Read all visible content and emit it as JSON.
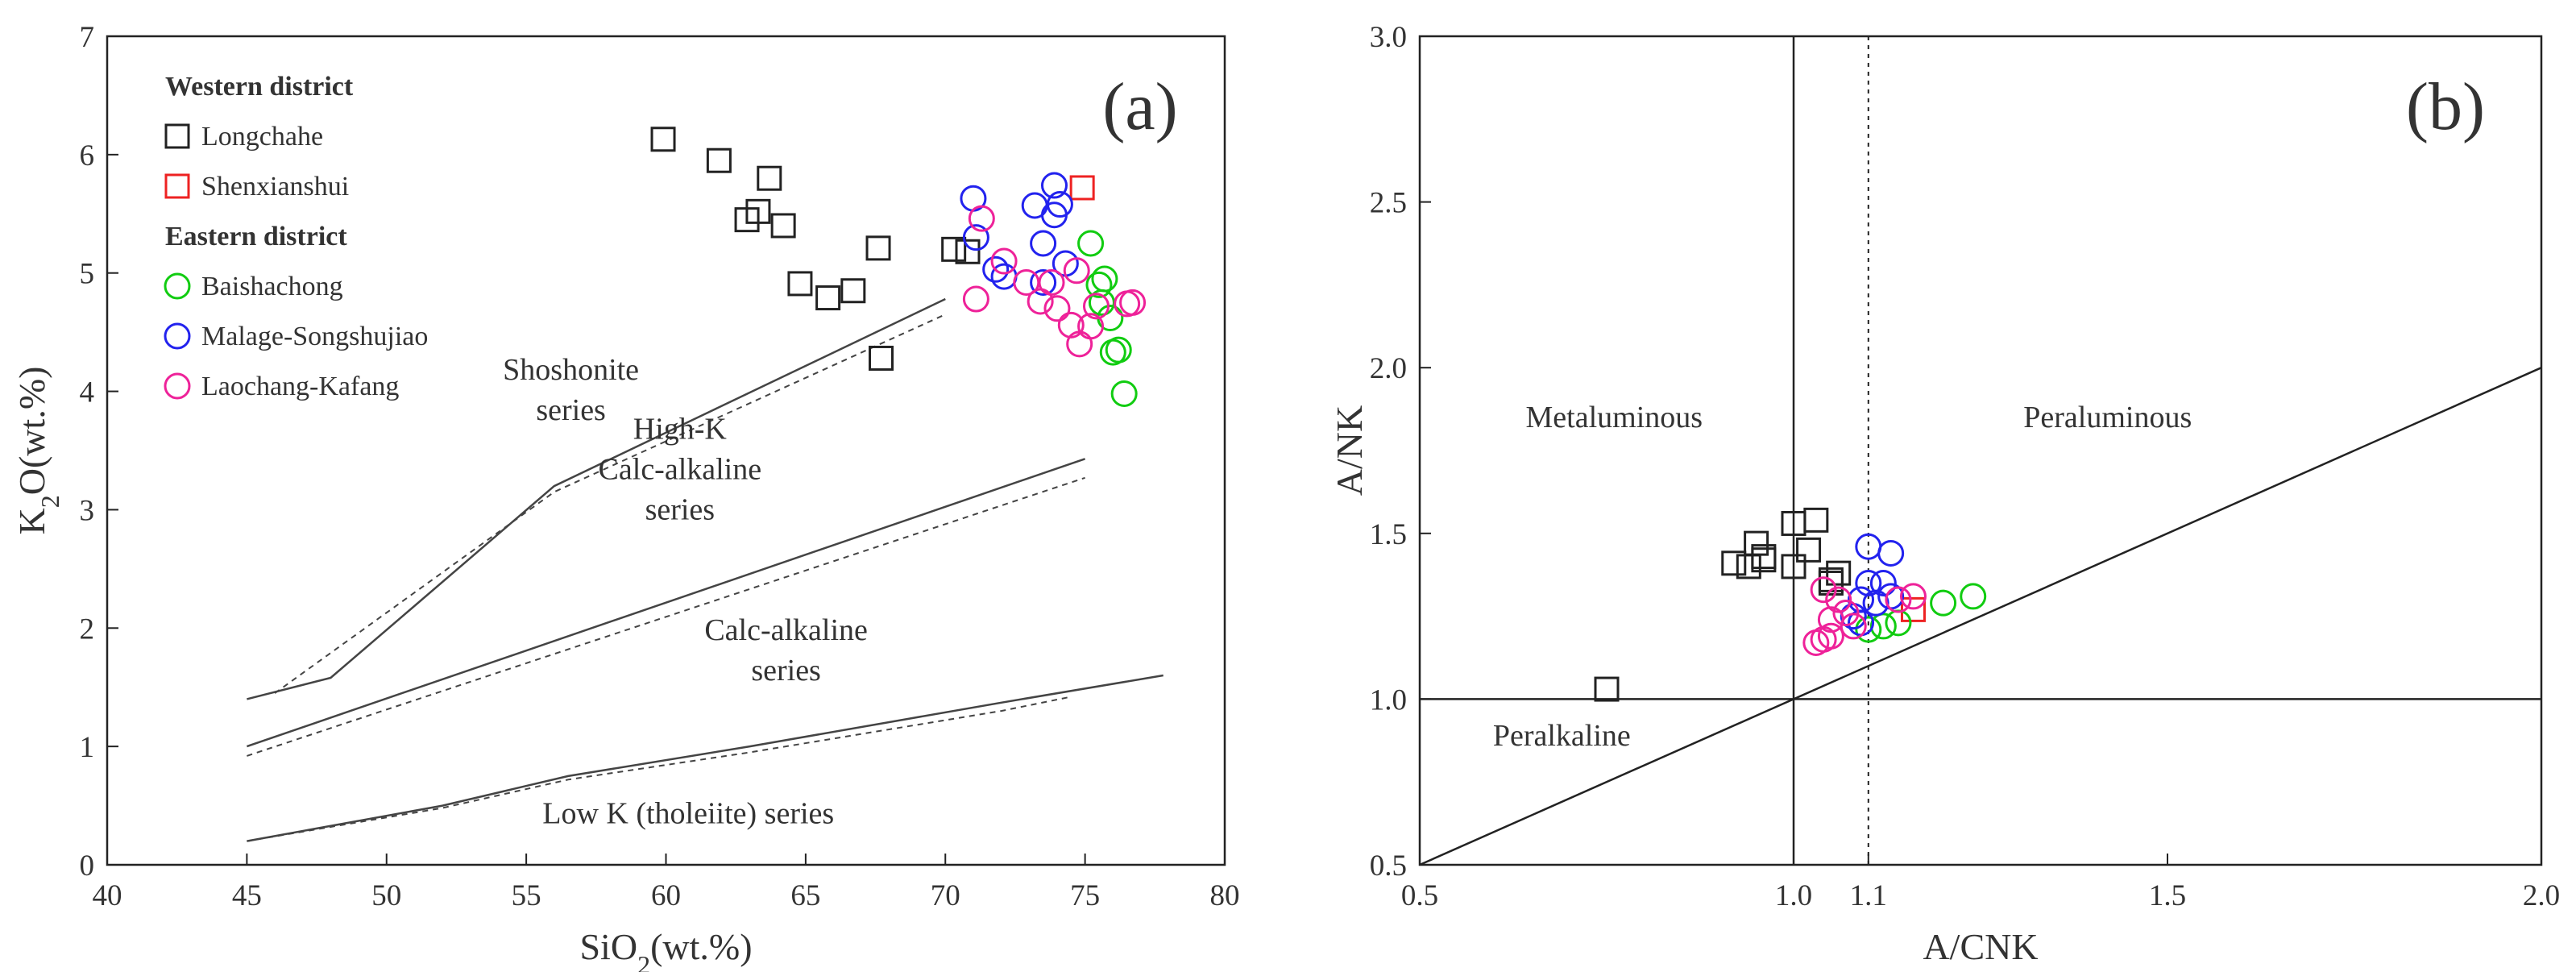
{
  "chart_data": [
    {
      "type": "scatter",
      "panel_label": "(a)",
      "xlabel": {
        "base": "SiO",
        "sub": "2",
        "rest": "(wt.%)"
      },
      "ylabel": {
        "base": "K",
        "sub": "2",
        "rest": "O(wt.%)"
      },
      "xlim": [
        40,
        80
      ],
      "ylim": [
        0,
        7
      ],
      "xticks": [
        "40",
        "45",
        "50",
        "55",
        "60",
        "65",
        "70",
        "75",
        "80"
      ],
      "yticks": [
        "0",
        "1",
        "2",
        "3",
        "4",
        "5",
        "6",
        "7"
      ],
      "colors": {
        "Longchahe": "#222222",
        "Shenxianshui": "#ee2222",
        "Baishachong": "#11cc11",
        "Malage-Songshujiao": "#2222ee",
        "Laochang-Kafang": "#ee2299"
      },
      "legend": {
        "position": "top-left",
        "groups": [
          {
            "heading": "Western district",
            "items": [
              {
                "label": "Longchahe",
                "marker": "square",
                "series": "Longchahe"
              },
              {
                "label": "Shenxianshui",
                "marker": "square",
                "series": "Shenxianshui"
              }
            ]
          },
          {
            "heading": "Eastern district",
            "items": [
              {
                "label": "Baishachong",
                "marker": "circle",
                "series": "Baishachong"
              },
              {
                "label": "Malage-Songshujiao",
                "marker": "circle",
                "series": "Malage-Songshujiao"
              },
              {
                "label": "Laochang-Kafang",
                "marker": "circle",
                "series": "Laochang-Kafang"
              }
            ]
          }
        ]
      },
      "field_labels": [
        {
          "lines": [
            "Shoshonite",
            "series"
          ],
          "x": 56.6,
          "y": 4.1
        },
        {
          "lines": [
            "High-K",
            "Calc-alkaline",
            "series"
          ],
          "x": 60.5,
          "y": 3.6
        },
        {
          "lines": [
            "Calc-alkaline",
            "series"
          ],
          "x": 64.3,
          "y": 1.9
        },
        {
          "lines": [
            "Low K (tholeiite) series"
          ],
          "x": 60.8,
          "y": 0.35
        }
      ],
      "boundary_lines": [
        {
          "style": "solid",
          "points": [
            [
              45,
              1.4
            ],
            [
              48,
              1.58
            ],
            [
              56,
              3.2
            ],
            [
              70,
              4.78
            ]
          ]
        },
        {
          "style": "dashed",
          "points": [
            [
              46,
              1.45
            ],
            [
              56,
              3.15
            ],
            [
              70,
              4.65
            ]
          ]
        },
        {
          "style": "solid",
          "points": [
            [
              45,
              1.0
            ],
            [
              75,
              3.43
            ]
          ]
        },
        {
          "style": "dashed",
          "points": [
            [
              45,
              0.92
            ],
            [
              75,
              3.27
            ]
          ]
        },
        {
          "style": "solid",
          "points": [
            [
              45,
              0.2
            ],
            [
              52,
              0.5
            ],
            [
              56.5,
              0.75
            ],
            [
              63,
              1.0
            ],
            [
              72,
              1.37
            ],
            [
              77.8,
              1.6
            ]
          ]
        },
        {
          "style": "dashed",
          "points": [
            [
              45,
              0.2
            ],
            [
              52,
              0.48
            ],
            [
              56.5,
              0.72
            ],
            [
              63,
              0.95
            ],
            [
              72,
              1.3
            ],
            [
              74.5,
              1.42
            ]
          ]
        }
      ],
      "series": [
        {
          "name": "Longchahe",
          "marker": "square",
          "points": [
            [
              59.9,
              6.13
            ],
            [
              61.9,
              5.95
            ],
            [
              63.7,
              5.8
            ],
            [
              63.3,
              5.52
            ],
            [
              62.9,
              5.45
            ],
            [
              64.2,
              5.4
            ],
            [
              64.8,
              4.91
            ],
            [
              65.8,
              4.79
            ],
            [
              66.7,
              4.85
            ],
            [
              67.6,
              5.21
            ],
            [
              67.7,
              4.28
            ],
            [
              70.3,
              5.2
            ],
            [
              70.8,
              5.18
            ]
          ]
        },
        {
          "name": "Shenxianshui",
          "marker": "square",
          "points": [
            [
              74.9,
              5.72
            ]
          ]
        },
        {
          "name": "Baishachong",
          "marker": "circle",
          "points": [
            [
              75.2,
              5.25
            ],
            [
              75.5,
              4.9
            ],
            [
              75.7,
              4.95
            ],
            [
              75.6,
              4.75
            ],
            [
              75.9,
              4.62
            ],
            [
              76.0,
              4.33
            ],
            [
              76.2,
              4.35
            ],
            [
              76.4,
              3.98
            ]
          ]
        },
        {
          "name": "Malage-Songshujiao",
          "marker": "circle",
          "points": [
            [
              71.0,
              5.63
            ],
            [
              71.1,
              5.3
            ],
            [
              71.8,
              5.03
            ],
            [
              72.1,
              4.97
            ],
            [
              73.2,
              5.57
            ],
            [
              73.5,
              5.25
            ],
            [
              73.9,
              5.74
            ],
            [
              73.9,
              5.49
            ],
            [
              74.1,
              5.58
            ],
            [
              74.3,
              5.08
            ],
            [
              73.5,
              4.92
            ]
          ]
        },
        {
          "name": "Laochang-Kafang",
          "marker": "circle",
          "points": [
            [
              71.3,
              5.46
            ],
            [
              71.1,
              4.78
            ],
            [
              72.1,
              5.1
            ],
            [
              72.9,
              4.92
            ],
            [
              73.4,
              4.76
            ],
            [
              73.8,
              4.92
            ],
            [
              74.0,
              4.7
            ],
            [
              74.5,
              4.56
            ],
            [
              74.8,
              4.4
            ],
            [
              74.7,
              5.02
            ],
            [
              75.2,
              4.55
            ],
            [
              75.4,
              4.72
            ],
            [
              76.5,
              4.74
            ],
            [
              76.7,
              4.75
            ]
          ]
        }
      ]
    },
    {
      "type": "scatter",
      "panel_label": "(b)",
      "xlabel": {
        "base": "A/CNK",
        "sub": "",
        "rest": ""
      },
      "ylabel": {
        "base": "A/NK",
        "sub": "",
        "rest": ""
      },
      "xlim": [
        0.5,
        2.0
      ],
      "ylim": [
        0.5,
        3.0
      ],
      "xticks": [
        {
          "value": 0.5,
          "label": "0.5"
        },
        {
          "value": 1.0,
          "label": "1.0"
        },
        {
          "value": 1.1,
          "label": "1.1"
        },
        {
          "value": 1.5,
          "label": "1.5"
        },
        {
          "value": 2.0,
          "label": "2.0"
        }
      ],
      "yticks": [
        "0.5",
        "1.0",
        "1.5",
        "2.0",
        "2.5",
        "3.0"
      ],
      "colors": {
        "Longchahe": "#222222",
        "Shenxianshui": "#ee2222",
        "Baishachong": "#11cc11",
        "Malage-Songshujiao": "#2222ee",
        "Laochang-Kafang": "#ee2299"
      },
      "field_labels": [
        {
          "lines": [
            "Metaluminous"
          ],
          "x": 0.76,
          "y": 1.82
        },
        {
          "lines": [
            "Peraluminous"
          ],
          "x": 1.42,
          "y": 1.82
        },
        {
          "lines": [
            "Peralkaline"
          ],
          "x": 0.69,
          "y": 0.86
        }
      ],
      "reference_lines": [
        {
          "style": "solid",
          "points": [
            [
              1.0,
              0.5
            ],
            [
              1.0,
              3.0
            ]
          ]
        },
        {
          "style": "dotted",
          "points": [
            [
              1.1,
              0.5
            ],
            [
              1.1,
              3.0
            ]
          ]
        },
        {
          "style": "solid",
          "points": [
            [
              0.5,
              1.0
            ],
            [
              2.0,
              1.0
            ]
          ]
        },
        {
          "style": "solid",
          "points": [
            [
              0.5,
              0.5
            ],
            [
              2.0,
              2.0
            ]
          ]
        }
      ],
      "series": [
        {
          "name": "Longchahe",
          "marker": "square",
          "points": [
            [
              0.75,
              1.03
            ],
            [
              0.92,
              1.41
            ],
            [
              0.94,
              1.4
            ],
            [
              0.95,
              1.47
            ],
            [
              0.96,
              1.43
            ],
            [
              0.96,
              1.42
            ],
            [
              1.0,
              1.53
            ],
            [
              1.0,
              1.4
            ],
            [
              1.02,
              1.45
            ],
            [
              1.03,
              1.54
            ],
            [
              1.05,
              1.36
            ],
            [
              1.05,
              1.35
            ],
            [
              1.06,
              1.38
            ]
          ]
        },
        {
          "name": "Shenxianshui",
          "marker": "square",
          "points": [
            [
              1.16,
              1.27
            ]
          ]
        },
        {
          "name": "Baishachong",
          "marker": "circle",
          "points": [
            [
              1.1,
              1.21
            ],
            [
              1.12,
              1.22
            ],
            [
              1.14,
              1.23
            ],
            [
              1.2,
              1.29
            ],
            [
              1.24,
              1.31
            ]
          ]
        },
        {
          "name": "Malage-Songshujiao",
          "marker": "circle",
          "points": [
            [
              1.1,
              1.46
            ],
            [
              1.1,
              1.35
            ],
            [
              1.09,
              1.3
            ],
            [
              1.11,
              1.29
            ],
            [
              1.08,
              1.25
            ],
            [
              1.09,
              1.23
            ],
            [
              1.12,
              1.35
            ],
            [
              1.13,
              1.31
            ],
            [
              1.13,
              1.44
            ]
          ]
        },
        {
          "name": "Laochang-Kafang",
          "marker": "circle",
          "points": [
            [
              1.04,
              1.33
            ],
            [
              1.06,
              1.3
            ],
            [
              1.07,
              1.26
            ],
            [
              1.05,
              1.24
            ],
            [
              1.04,
              1.18
            ],
            [
              1.05,
              1.19
            ],
            [
              1.03,
              1.17
            ],
            [
              1.08,
              1.22
            ],
            [
              1.16,
              1.31
            ],
            [
              1.14,
              1.3
            ]
          ]
        }
      ]
    }
  ]
}
